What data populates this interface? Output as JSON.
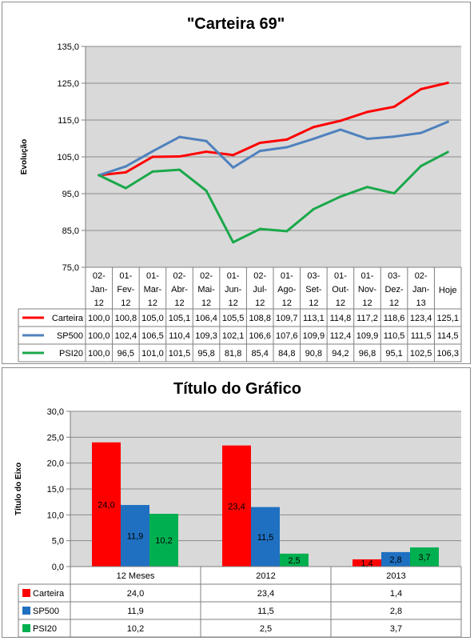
{
  "chart_data": [
    {
      "type": "line",
      "title": "\"Carteira 69\"",
      "xlabel": "",
      "ylabel": "Evolução",
      "ylim": [
        75,
        135
      ],
      "yticks": [
        "75,0",
        "85,0",
        "95,0",
        "105,0",
        "115,0",
        "125,0",
        "135,0"
      ],
      "categories": [
        [
          "02-",
          "Jan-",
          "12"
        ],
        [
          "01-",
          "Fev-",
          "12"
        ],
        [
          "01-",
          "Mar-",
          "12"
        ],
        [
          "02-",
          "Abr-",
          "12"
        ],
        [
          "02-",
          "Mai-",
          "12"
        ],
        [
          "01-",
          "Jun-",
          "12"
        ],
        [
          "02-",
          "Jul-",
          "12"
        ],
        [
          "01-",
          "Ago-",
          "12"
        ],
        [
          "03-",
          "Set-",
          "12"
        ],
        [
          "01-",
          "Out-",
          "12"
        ],
        [
          "01-",
          "Nov-",
          "12"
        ],
        [
          "03-",
          "Dez-",
          "12"
        ],
        [
          "02-",
          "Jan-",
          "13"
        ],
        [
          "Hoje"
        ]
      ],
      "grid": true,
      "legend": "data-table",
      "series": [
        {
          "name": "Carteira",
          "color": "#ff0000",
          "values": [
            100.0,
            100.8,
            105.0,
            105.1,
            106.4,
            105.5,
            108.8,
            109.7,
            113.1,
            114.8,
            117.2,
            118.6,
            123.4,
            125.1
          ],
          "labels": [
            "100,0",
            "100,8",
            "105,0",
            "105,1",
            "106,4",
            "105,5",
            "108,8",
            "109,7",
            "113,1",
            "114,8",
            "117,2",
            "118,6",
            "123,4",
            "125,1"
          ]
        },
        {
          "name": "SP500",
          "color": "#4f81bd",
          "values": [
            100.0,
            102.4,
            106.5,
            110.4,
            109.3,
            102.1,
            106.6,
            107.6,
            109.9,
            112.4,
            109.9,
            110.5,
            111.5,
            114.5
          ],
          "labels": [
            "100,0",
            "102,4",
            "106,5",
            "110,4",
            "109,3",
            "102,1",
            "106,6",
            "107,6",
            "109,9",
            "112,4",
            "109,9",
            "110,5",
            "111,5",
            "114,5"
          ]
        },
        {
          "name": "PSI20",
          "color": "#1aa84a",
          "values": [
            100.0,
            96.5,
            101.0,
            101.5,
            95.8,
            81.8,
            85.4,
            84.8,
            90.8,
            94.2,
            96.8,
            95.1,
            102.5,
            106.3
          ],
          "labels": [
            "100,0",
            "96,5",
            "101,0",
            "101,5",
            "95,8",
            "81,8",
            "85,4",
            "84,8",
            "90,8",
            "94,2",
            "96,8",
            "95,1",
            "102,5",
            "106,3"
          ]
        }
      ]
    },
    {
      "type": "bar",
      "title": "Título do Gráfico",
      "xlabel": "",
      "ylabel": "Título do Eixo",
      "ylim": [
        0,
        30
      ],
      "yticks": [
        "0,0",
        "5,0",
        "10,0",
        "15,0",
        "20,0",
        "25,0",
        "30,0"
      ],
      "categories": [
        "12 Meses",
        "2012",
        "2013"
      ],
      "grid": true,
      "legend": "data-table",
      "series": [
        {
          "name": "Carteira",
          "color": "#ff0000",
          "values": [
            24.0,
            23.4,
            1.4
          ],
          "labels": [
            "24,0",
            "23,4",
            "1,4"
          ]
        },
        {
          "name": "SP500",
          "color": "#1f70c1",
          "values": [
            11.9,
            11.5,
            2.8
          ],
          "labels": [
            "11,9",
            "11,5",
            "2,8"
          ]
        },
        {
          "name": "PSI20",
          "color": "#00b050",
          "values": [
            10.2,
            2.5,
            3.7
          ],
          "labels": [
            "10,2",
            "2,5",
            "3,7"
          ]
        }
      ]
    }
  ]
}
